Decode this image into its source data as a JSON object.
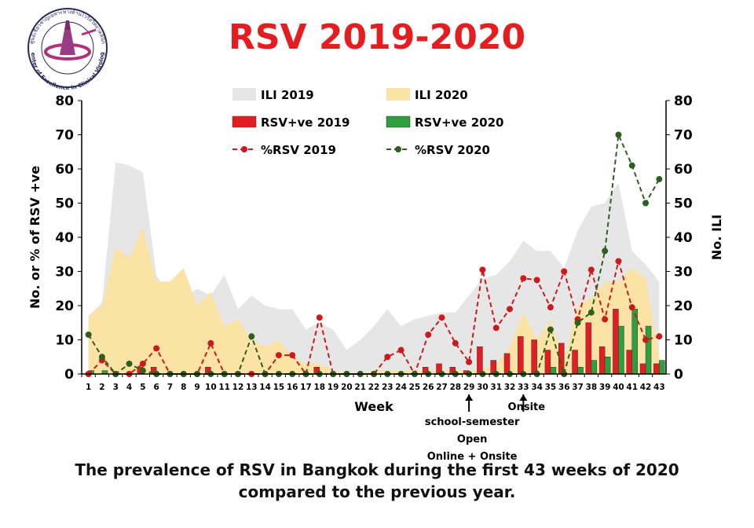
{
  "page": {
    "title": "RSV 2019-2020",
    "caption_line1": "The prevalence of RSV in Bangkok during the first 43 weeks of 2020",
    "caption_line2": "compared to the previous year.",
    "logo_text_top": "ศูนย์เชี่ยวชาญเฉพาะทางด้านไวรัสวิทยาคลินิก",
    "logo_text_bottom": "Center of Excellence in Clinical Virology"
  },
  "chart_data": {
    "type": "combo",
    "title": "RSV 2019-2020",
    "xlabel": "Week",
    "ylabel_left": "No. or % of RSV +ve",
    "ylabel_right": "No. ILI",
    "ylim": [
      0,
      80
    ],
    "yticks": [
      0,
      10,
      20,
      30,
      40,
      50,
      60,
      70,
      80
    ],
    "categories": [
      1,
      2,
      3,
      4,
      5,
      6,
      7,
      8,
      9,
      10,
      11,
      12,
      13,
      14,
      15,
      16,
      17,
      18,
      19,
      20,
      21,
      22,
      23,
      24,
      25,
      26,
      27,
      28,
      29,
      30,
      31,
      32,
      33,
      34,
      35,
      36,
      37,
      38,
      39,
      40,
      41,
      42,
      43
    ],
    "legend": {
      "ili_2019": "ILI 2019",
      "ili_2020": "ILI 2020",
      "rsv_2019": "RSV+ve 2019",
      "rsv_2020": "RSV+ve 2020",
      "pct_2019": "%RSV 2019",
      "pct_2020": "%RSV 2020"
    },
    "colors": {
      "ili_2019": "#e6e6e6",
      "ili_2020": "#fbe3a6",
      "rsv_2019": "#e41e20",
      "rsv_2020": "#2f9e3e",
      "pct_2019": "#cc1a1a",
      "pct_2020": "#2f5e1f"
    },
    "series": [
      {
        "name": "ILI 2019",
        "kind": "area",
        "values": [
          17,
          21,
          62,
          61,
          59,
          29,
          22,
          22,
          25,
          23,
          29,
          19,
          23,
          20,
          19,
          19,
          13,
          15,
          13,
          7,
          10,
          14,
          19,
          14,
          16,
          17,
          18,
          18,
          23,
          28,
          29,
          33,
          39,
          36,
          36,
          31,
          42,
          49,
          50,
          56,
          36,
          32,
          27
        ]
      },
      {
        "name": "ILI 2020",
        "kind": "area",
        "values": [
          17,
          20,
          37,
          34,
          43,
          27,
          27,
          31,
          20,
          24,
          14,
          16,
          10,
          8,
          10,
          5,
          3,
          3,
          1,
          0,
          0,
          1,
          1,
          1,
          1,
          1,
          1,
          1,
          1,
          1,
          3,
          8,
          18,
          10,
          16,
          4,
          20,
          22,
          27,
          27,
          31,
          28,
          5
        ]
      },
      {
        "name": "RSV+ve 2019",
        "kind": "bar",
        "values": [
          0,
          0,
          0,
          0,
          2,
          2,
          0,
          0,
          0,
          2,
          0,
          0,
          0,
          0,
          0,
          0,
          0,
          2,
          0,
          0,
          0,
          0,
          0,
          0,
          0,
          2,
          3,
          2,
          1,
          8,
          4,
          6,
          11,
          10,
          7,
          9,
          7,
          15,
          8,
          19,
          7,
          3,
          3
        ]
      },
      {
        "name": "RSV+ve 2020",
        "kind": "bar",
        "values": [
          1,
          1,
          0,
          0,
          0,
          0,
          0,
          0,
          0,
          0,
          0,
          0,
          0,
          0,
          0,
          0,
          0,
          0,
          0,
          0,
          0,
          0,
          0,
          0,
          0,
          0,
          0,
          0,
          0,
          0,
          0,
          0,
          0,
          0,
          2,
          0,
          2,
          4,
          5,
          14,
          19,
          14,
          4
        ]
      },
      {
        "name": "%RSV 2019",
        "kind": "line",
        "values": [
          0,
          4,
          0,
          0,
          3,
          7.5,
          0,
          0,
          0,
          9,
          0,
          0,
          0,
          0,
          5.5,
          5.5,
          0,
          16.5,
          0,
          0,
          0,
          0,
          5,
          7,
          0,
          11.5,
          16.5,
          9,
          3.5,
          30.5,
          13.5,
          19,
          28,
          27.5,
          19.5,
          30,
          16,
          30.5,
          16,
          33,
          19.5,
          10,
          11
        ]
      },
      {
        "name": "%RSV 2020",
        "kind": "line",
        "values": [
          11.5,
          5,
          0,
          3,
          1,
          0,
          0,
          0,
          0,
          0,
          0,
          0,
          11,
          0,
          0,
          0,
          0,
          0,
          0,
          0,
          0,
          0,
          0,
          0,
          0,
          0,
          0,
          0,
          0,
          0,
          0,
          0,
          0,
          0,
          13,
          0,
          15,
          18,
          36,
          70,
          61,
          50,
          57
        ]
      }
    ],
    "annotations": [
      {
        "week": 29,
        "lines": [
          "school-semester",
          "Open",
          "Online + Onsite"
        ]
      },
      {
        "week": 33,
        "lines": [
          "Onsite"
        ]
      }
    ]
  }
}
